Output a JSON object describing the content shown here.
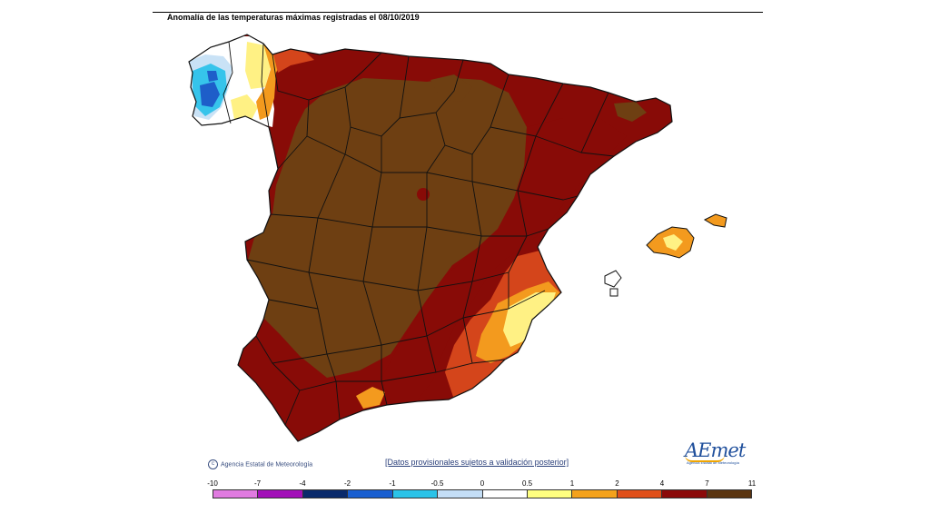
{
  "title": "Anomalía de las temperaturas máximas registradas el 08/10/2019",
  "credit": "Agencia Estatal de Meteorología",
  "disclaimer": "[Datos provisionales sujetos a validación posterior]",
  "logo": {
    "text": "AEmet",
    "subtitle": "Agencia Estatal de Meteorología"
  },
  "legend": {
    "labels": [
      "-10",
      "-7",
      "-4",
      "-2",
      "-1",
      "-0.5",
      "0",
      "0.5",
      "1",
      "2",
      "4",
      "7",
      "11"
    ],
    "colors": [
      "#e07be0",
      "#a20fb8",
      "#0a2a6b",
      "#1a5fd0",
      "#2bc3e8",
      "#c4def6",
      "#ffffff",
      "#ffff80",
      "#f4a21c",
      "#e0501a",
      "#8b0a0a",
      "#5a3511"
    ]
  },
  "map_colors": {
    "brown_above_7": "#6e3f12",
    "darkred_4_7": "#880b07",
    "red_2_4": "#d4451b",
    "orange_1_2": "#f39a1e",
    "yellow_05_1": "#fff184",
    "lightblue": "#c9e2f6",
    "cyan": "#36c4eb",
    "blue": "#1e5ec9",
    "border": "#111111"
  }
}
